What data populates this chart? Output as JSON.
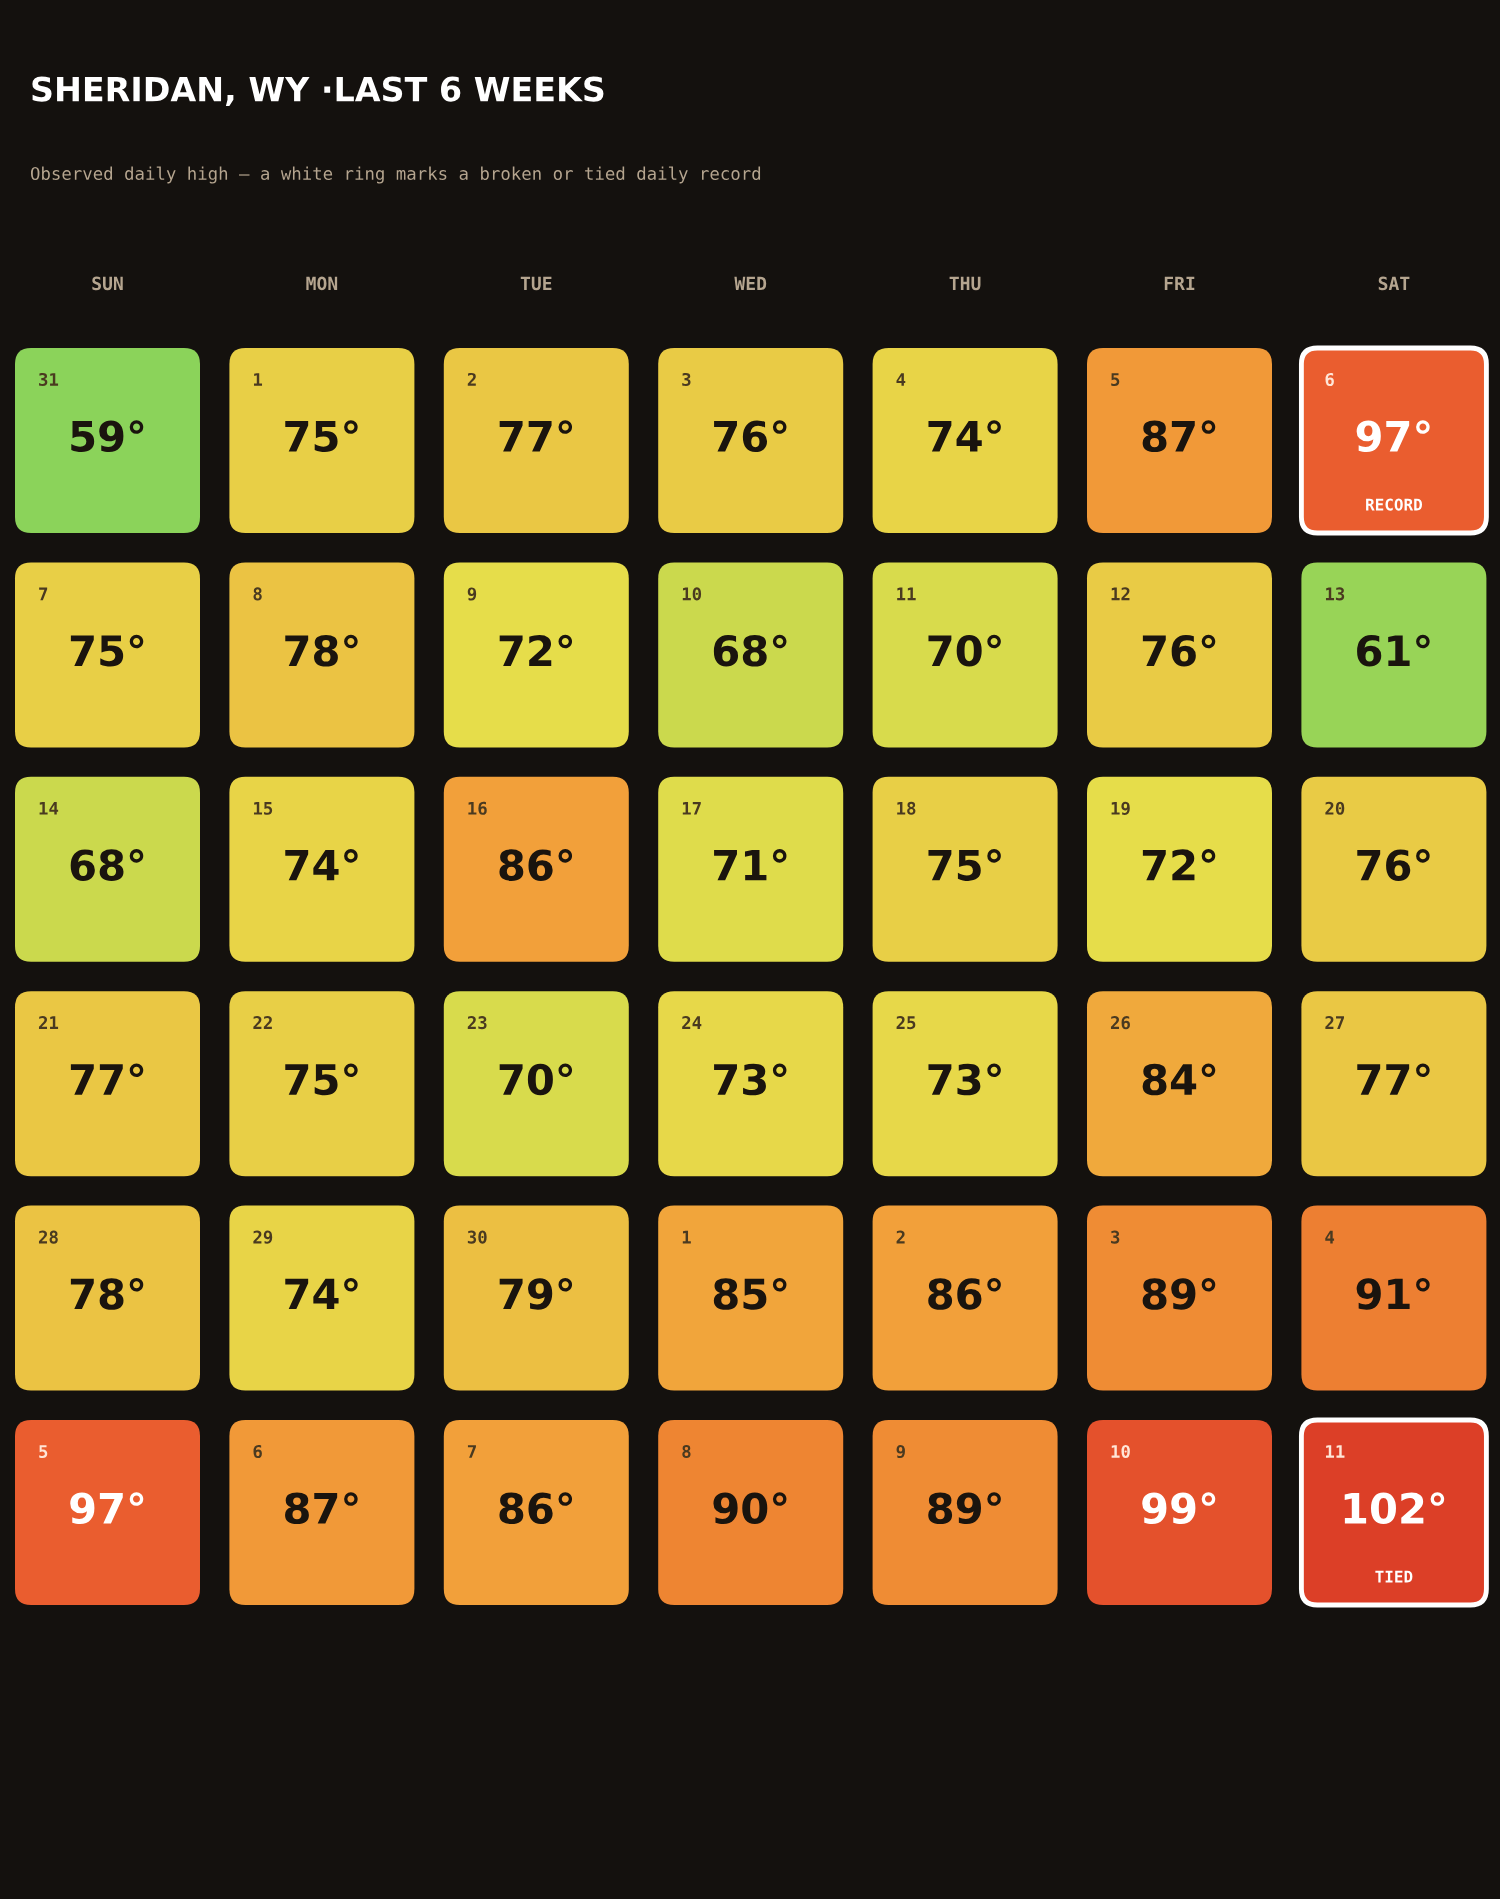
{
  "chart_data": {
    "type": "heatmap",
    "title": "SHERIDAN, WY ·LAST 6 WEEKS",
    "subtitle": "Observed daily high — a white ring marks a broken or tied daily record",
    "categories": [
      "SUN",
      "MON",
      "TUE",
      "WED",
      "THU",
      "FRI",
      "SAT"
    ],
    "y_categories": [
      null,
      null,
      null,
      null,
      null,
      null
    ],
    "cells": [
      [
        59,
        75,
        77,
        76,
        74,
        87,
        97
      ],
      [
        75,
        78,
        72,
        68,
        70,
        76,
        61
      ],
      [
        68,
        74,
        86,
        71,
        75,
        72,
        76
      ],
      [
        77,
        75,
        70,
        73,
        73,
        84,
        77
      ],
      [
        78,
        74,
        79,
        85,
        86,
        89,
        91
      ],
      [
        97,
        87,
        86,
        90,
        89,
        99,
        102
      ]
    ],
    "cell_labels": [
      [
        "59°",
        "75°",
        "77°",
        "76°",
        "74°",
        "87°",
        "97°\nRECORD"
      ],
      [
        "75°",
        "78°",
        "72°",
        "68°",
        "70°",
        "76°",
        "61°"
      ],
      [
        "68°",
        "74°",
        "86°",
        "71°",
        "75°",
        "72°",
        "76°"
      ],
      [
        "77°",
        "75°",
        "70°",
        "73°",
        "73°",
        "84°",
        "77°"
      ],
      [
        "78°",
        "74°",
        "79°",
        "85°",
        "86°",
        "89°",
        "91°"
      ],
      [
        "97°",
        "87°",
        "86°",
        "90°",
        "89°",
        "99°",
        "102°\nTIED"
      ]
    ],
    "annotations": [
      "31",
      "1",
      "2",
      "3",
      "4",
      "5",
      "6",
      "7",
      "8",
      "9",
      "10",
      "11",
      "12",
      "13",
      "14",
      "15",
      "16",
      "17",
      "18",
      "19",
      "20",
      "21",
      "22",
      "23",
      "24",
      "25",
      "26",
      "27",
      "28",
      "29",
      "30",
      "1",
      "2",
      "3",
      "4",
      "5",
      "6",
      "7",
      "8",
      "9",
      "10",
      "11"
    ]
  }
}
